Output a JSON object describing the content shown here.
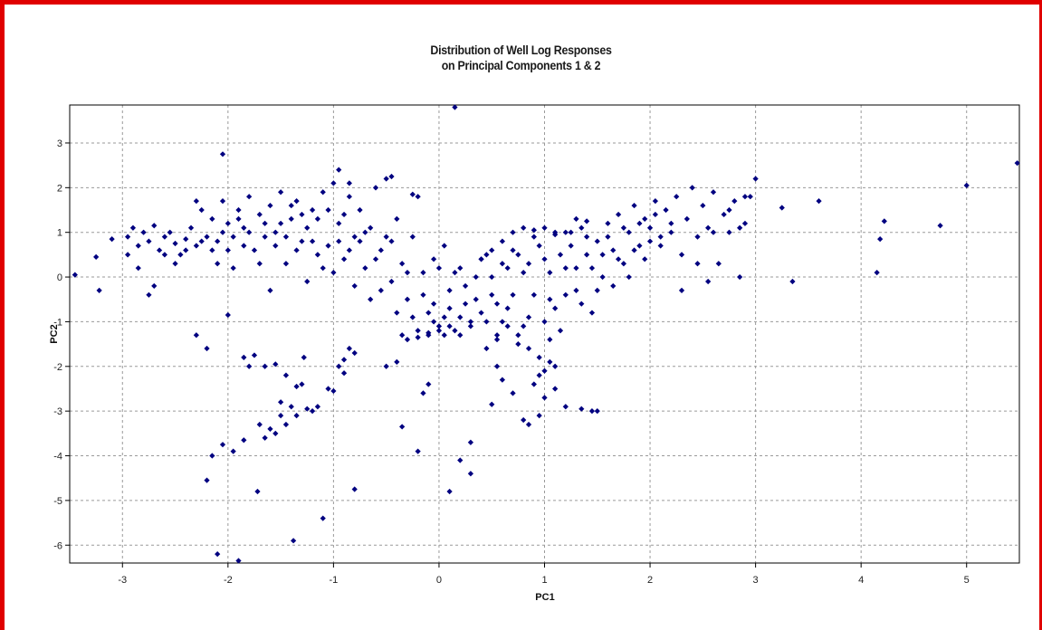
{
  "chart_data": {
    "type": "scatter",
    "title": "Distribution of Well Log Responses",
    "subtitle": "on Principal Components 1 & 2",
    "xlabel": "PC1",
    "ylabel": "PC2",
    "xlim": [
      -3.5,
      5.5
    ],
    "ylim": [
      -6.4,
      3.85
    ],
    "xticks": [
      -3,
      -2,
      -1,
      0,
      1,
      2,
      3,
      4,
      5
    ],
    "yticks": [
      3,
      2,
      1,
      0,
      -1,
      -2,
      -3,
      -4,
      -5,
      -6
    ],
    "grid": true,
    "marker_color": "#000080",
    "points": [
      [
        -3.45,
        0.05
      ],
      [
        -3.25,
        0.45
      ],
      [
        -3.22,
        -0.3
      ],
      [
        -3.1,
        0.85
      ],
      [
        -2.95,
        0.9
      ],
      [
        -2.9,
        1.1
      ],
      [
        -2.85,
        0.7
      ],
      [
        -2.8,
        1.0
      ],
      [
        -2.75,
        0.8
      ],
      [
        -2.7,
        1.15
      ],
      [
        -2.65,
        0.6
      ],
      [
        -2.6,
        0.9
      ],
      [
        -2.55,
        1.0
      ],
      [
        -2.5,
        0.75
      ],
      [
        -2.45,
        0.5
      ],
      [
        -2.4,
        0.85
      ],
      [
        -2.35,
        1.1
      ],
      [
        -2.3,
        0.7
      ],
      [
        -2.25,
        1.5
      ],
      [
        -2.2,
        0.9
      ],
      [
        -2.15,
        1.3
      ],
      [
        -2.1,
        0.8
      ],
      [
        -2.05,
        1.7
      ],
      [
        -2.0,
        1.2
      ],
      [
        -1.95,
        0.9
      ],
      [
        -1.9,
        1.5
      ],
      [
        -1.85,
        1.1
      ],
      [
        -1.8,
        1.8
      ],
      [
        -1.75,
        0.6
      ],
      [
        -1.7,
        1.4
      ],
      [
        -1.65,
        0.9
      ],
      [
        -1.6,
        1.6
      ],
      [
        -1.55,
        1.0
      ],
      [
        -1.5,
        1.9
      ],
      [
        -1.45,
        0.3
      ],
      [
        -1.4,
        1.3
      ],
      [
        -1.35,
        1.7
      ],
      [
        -1.3,
        0.8
      ],
      [
        -1.25,
        1.1
      ],
      [
        -1.2,
        1.5
      ],
      [
        -1.15,
        0.5
      ],
      [
        -1.1,
        1.9
      ],
      [
        -1.05,
        0.7
      ],
      [
        -1.0,
        2.1
      ],
      [
        -0.95,
        1.2
      ],
      [
        -0.9,
        0.4
      ],
      [
        -0.85,
        1.8
      ],
      [
        -0.8,
        0.9
      ],
      [
        -0.75,
        1.5
      ],
      [
        -0.7,
        0.2
      ],
      [
        -0.65,
        1.1
      ],
      [
        -0.6,
        2.0
      ],
      [
        -0.55,
        0.6
      ],
      [
        -0.5,
        2.2
      ],
      [
        -0.45,
        0.8
      ],
      [
        -0.4,
        1.3
      ],
      [
        -0.35,
        0.3
      ],
      [
        -0.3,
        -0.5
      ],
      [
        -0.25,
        0.9
      ],
      [
        -0.2,
        1.8
      ],
      [
        -0.15,
        0.1
      ],
      [
        -0.1,
        -0.8
      ],
      [
        -0.05,
        0.4
      ],
      [
        0.0,
        -1.1
      ],
      [
        0.05,
        0.7
      ],
      [
        0.1,
        -0.3
      ],
      [
        0.15,
        -1.2
      ],
      [
        0.2,
        0.2
      ],
      [
        0.25,
        -0.6
      ],
      [
        0.3,
        -1.0
      ],
      [
        0.35,
        0.0
      ],
      [
        0.4,
        -0.8
      ],
      [
        0.45,
        0.5
      ],
      [
        0.5,
        -0.4
      ],
      [
        0.55,
        -1.3
      ],
      [
        0.6,
        0.3
      ],
      [
        0.65,
        -0.7
      ],
      [
        0.7,
        0.6
      ],
      [
        0.75,
        -1.5
      ],
      [
        0.8,
        0.1
      ],
      [
        0.85,
        -0.9
      ],
      [
        0.9,
        0.9
      ],
      [
        0.95,
        -1.8
      ],
      [
        1.0,
        0.4
      ],
      [
        1.05,
        -0.5
      ],
      [
        1.1,
        1.0
      ],
      [
        1.15,
        -1.2
      ],
      [
        1.2,
        0.2
      ],
      [
        1.25,
        0.7
      ],
      [
        1.3,
        -0.3
      ],
      [
        1.35,
        1.1
      ],
      [
        1.4,
        0.5
      ],
      [
        1.45,
        -0.8
      ],
      [
        1.5,
        0.8
      ],
      [
        1.55,
        0.0
      ],
      [
        1.6,
        1.2
      ],
      [
        1.65,
        0.6
      ],
      [
        1.7,
        1.4
      ],
      [
        1.75,
        0.3
      ],
      [
        1.8,
        1.0
      ],
      [
        1.85,
        1.6
      ],
      [
        1.9,
        0.7
      ],
      [
        1.95,
        1.3
      ],
      [
        2.0,
        1.1
      ],
      [
        2.05,
        1.7
      ],
      [
        2.1,
        0.9
      ],
      [
        2.15,
        1.5
      ],
      [
        2.2,
        1.2
      ],
      [
        2.25,
        1.8
      ],
      [
        2.3,
        0.5
      ],
      [
        2.35,
        1.3
      ],
      [
        2.4,
        2.0
      ],
      [
        2.45,
        0.9
      ],
      [
        2.5,
        1.6
      ],
      [
        2.55,
        1.1
      ],
      [
        2.6,
        1.9
      ],
      [
        2.65,
        0.3
      ],
      [
        2.7,
        1.4
      ],
      [
        2.75,
        1.0
      ],
      [
        2.8,
        1.7
      ],
      [
        2.85,
        0.0
      ],
      [
        2.9,
        1.2
      ],
      [
        2.95,
        1.8
      ],
      [
        3.0,
        2.2
      ],
      [
        3.25,
        1.55
      ],
      [
        3.35,
        -0.1
      ],
      [
        3.6,
        1.7
      ],
      [
        4.15,
        0.1
      ],
      [
        4.18,
        0.85
      ],
      [
        4.22,
        1.25
      ],
      [
        4.75,
        1.15
      ],
      [
        5.0,
        2.05
      ],
      [
        5.48,
        2.55
      ],
      [
        -2.05,
        2.75
      ],
      [
        -0.95,
        2.4
      ],
      [
        -0.85,
        2.1
      ],
      [
        -0.45,
        2.25
      ],
      [
        -0.25,
        1.85
      ],
      [
        0.15,
        3.8
      ],
      [
        -2.2,
        -1.6
      ],
      [
        -2.3,
        -1.3
      ],
      [
        -2.15,
        -4.0
      ],
      [
        -2.2,
        -4.55
      ],
      [
        -2.1,
        -6.2
      ],
      [
        -2.05,
        -3.75
      ],
      [
        -2.0,
        -0.85
      ],
      [
        -1.95,
        -3.9
      ],
      [
        -1.9,
        -6.35
      ],
      [
        -1.85,
        -3.65
      ],
      [
        -1.85,
        -1.8
      ],
      [
        -1.8,
        -2.0
      ],
      [
        -1.75,
        -1.75
      ],
      [
        -1.72,
        -4.8
      ],
      [
        -1.7,
        -3.3
      ],
      [
        -1.65,
        -2.0
      ],
      [
        -1.65,
        -3.6
      ],
      [
        -1.6,
        -3.4
      ],
      [
        -1.55,
        -1.95
      ],
      [
        -1.55,
        -3.5
      ],
      [
        -1.5,
        -3.1
      ],
      [
        -1.5,
        -2.8
      ],
      [
        -1.45,
        -3.3
      ],
      [
        -1.45,
        -2.2
      ],
      [
        -1.4,
        -2.9
      ],
      [
        -1.38,
        -5.9
      ],
      [
        -1.35,
        -3.1
      ],
      [
        -1.35,
        -2.45
      ],
      [
        -1.3,
        -2.4
      ],
      [
        -1.28,
        -1.8
      ],
      [
        -1.25,
        -2.95
      ],
      [
        -1.2,
        -3.0
      ],
      [
        -1.15,
        -2.9
      ],
      [
        -1.05,
        -2.5
      ],
      [
        -1.0,
        -2.55
      ],
      [
        -0.95,
        -2.0
      ],
      [
        -0.9,
        -1.85
      ],
      [
        -0.9,
        -2.15
      ],
      [
        -0.85,
        -1.6
      ],
      [
        -0.8,
        -1.7
      ],
      [
        -1.1,
        -5.4
      ],
      [
        -0.8,
        -4.75
      ],
      [
        -0.35,
        -3.35
      ],
      [
        -0.2,
        -3.9
      ],
      [
        -0.15,
        -2.6
      ],
      [
        -0.1,
        -2.4
      ],
      [
        0.1,
        -4.8
      ],
      [
        0.2,
        -4.1
      ],
      [
        0.3,
        -4.4
      ],
      [
        0.3,
        -3.7
      ],
      [
        0.8,
        -3.2
      ],
      [
        0.85,
        -3.3
      ],
      [
        0.95,
        -3.1
      ],
      [
        1.0,
        -2.7
      ],
      [
        1.1,
        -2.5
      ],
      [
        1.2,
        -2.9
      ],
      [
        1.35,
        -2.95
      ],
      [
        1.45,
        -3.0
      ],
      [
        1.5,
        -3.0
      ],
      [
        0.5,
        -2.85
      ],
      [
        0.6,
        -2.3
      ],
      [
        0.7,
        -2.6
      ],
      [
        0.55,
        -2.0
      ],
      [
        -0.5,
        -2.0
      ],
      [
        -0.4,
        -1.9
      ],
      [
        -2.95,
        0.5
      ],
      [
        -2.85,
        0.2
      ],
      [
        -2.75,
        -0.4
      ],
      [
        -2.7,
        -0.2
      ],
      [
        -2.6,
        0.5
      ],
      [
        -2.5,
        0.3
      ],
      [
        -2.4,
        0.6
      ],
      [
        -2.3,
        1.7
      ],
      [
        -2.25,
        0.8
      ],
      [
        -2.15,
        0.6
      ],
      [
        -2.1,
        0.3
      ],
      [
        -2.05,
        1.0
      ],
      [
        -2.0,
        0.6
      ],
      [
        -1.95,
        0.2
      ],
      [
        -1.9,
        1.3
      ],
      [
        -1.85,
        0.7
      ],
      [
        -1.8,
        1.0
      ],
      [
        -1.7,
        0.3
      ],
      [
        -1.65,
        1.2
      ],
      [
        -1.6,
        -0.3
      ],
      [
        -1.55,
        0.7
      ],
      [
        -1.5,
        1.2
      ],
      [
        -1.45,
        0.9
      ],
      [
        -1.4,
        1.6
      ],
      [
        -1.35,
        0.6
      ],
      [
        -1.3,
        1.4
      ],
      [
        -1.25,
        -0.1
      ],
      [
        -1.2,
        0.8
      ],
      [
        -1.15,
        1.3
      ],
      [
        -1.1,
        0.2
      ],
      [
        -1.05,
        1.5
      ],
      [
        -1.0,
        0.1
      ],
      [
        -0.95,
        0.8
      ],
      [
        -0.9,
        1.4
      ],
      [
        -0.85,
        0.6
      ],
      [
        -0.8,
        -0.2
      ],
      [
        -0.75,
        0.8
      ],
      [
        -0.7,
        1.0
      ],
      [
        -0.65,
        -0.5
      ],
      [
        -0.6,
        0.4
      ],
      [
        -0.55,
        -0.3
      ],
      [
        -0.5,
        0.9
      ],
      [
        -0.45,
        -0.1
      ],
      [
        -0.4,
        -0.8
      ],
      [
        -0.35,
        -1.3
      ],
      [
        -0.3,
        0.1
      ],
      [
        -0.25,
        -0.9
      ],
      [
        -0.2,
        -1.2
      ],
      [
        -0.15,
        -0.4
      ],
      [
        -0.1,
        -1.3
      ],
      [
        -0.05,
        -0.6
      ],
      [
        0.0,
        0.2
      ],
      [
        0.05,
        -1.3
      ],
      [
        0.1,
        -0.7
      ],
      [
        0.15,
        0.1
      ],
      [
        0.2,
        -0.9
      ],
      [
        0.25,
        -0.2
      ],
      [
        0.3,
        -1.1
      ],
      [
        0.35,
        -0.5
      ],
      [
        0.4,
        0.4
      ],
      [
        0.45,
        -1.0
      ],
      [
        0.5,
        0.0
      ],
      [
        0.55,
        -0.6
      ],
      [
        0.6,
        -1.0
      ],
      [
        0.65,
        0.2
      ],
      [
        0.7,
        -0.4
      ],
      [
        0.75,
        0.5
      ],
      [
        0.8,
        -1.1
      ],
      [
        0.85,
        0.3
      ],
      [
        0.9,
        -0.4
      ],
      [
        0.95,
        0.7
      ],
      [
        1.0,
        -1.0
      ],
      [
        1.05,
        0.1
      ],
      [
        1.1,
        -0.7
      ],
      [
        1.15,
        0.5
      ],
      [
        1.2,
        -0.4
      ],
      [
        1.25,
        1.0
      ],
      [
        1.3,
        0.2
      ],
      [
        1.35,
        -0.6
      ],
      [
        1.4,
        0.9
      ],
      [
        1.45,
        0.2
      ],
      [
        1.5,
        -0.3
      ],
      [
        1.55,
        0.5
      ],
      [
        1.6,
        0.9
      ],
      [
        1.65,
        -0.2
      ],
      [
        1.7,
        0.4
      ],
      [
        1.75,
        1.1
      ],
      [
        1.8,
        0.0
      ],
      [
        1.85,
        0.6
      ],
      [
        1.9,
        1.2
      ],
      [
        1.95,
        0.4
      ],
      [
        2.0,
        0.8
      ],
      [
        2.05,
        1.4
      ],
      [
        2.1,
        0.7
      ],
      [
        2.2,
        1.0
      ],
      [
        2.3,
        -0.3
      ],
      [
        2.45,
        0.3
      ],
      [
        2.55,
        -0.1
      ],
      [
        2.6,
        1.0
      ],
      [
        2.75,
        1.5
      ],
      [
        2.85,
        1.1
      ],
      [
        2.9,
        1.8
      ],
      [
        0.7,
        1.0
      ],
      [
        0.8,
        1.1
      ],
      [
        0.9,
        1.05
      ],
      [
        1.0,
        1.1
      ],
      [
        1.1,
        0.95
      ],
      [
        1.2,
        1.0
      ],
      [
        0.6,
        0.8
      ],
      [
        0.5,
        0.6
      ],
      [
        0.4,
        0.4
      ],
      [
        1.3,
        1.3
      ],
      [
        1.4,
        1.25
      ],
      [
        0.95,
        -2.2
      ],
      [
        1.0,
        -2.1
      ],
      [
        1.05,
        -1.9
      ],
      [
        0.9,
        -2.4
      ],
      [
        0.85,
        -1.6
      ],
      [
        1.05,
        -1.4
      ],
      [
        1.1,
        -2.0
      ],
      [
        0.75,
        -1.3
      ],
      [
        0.65,
        -1.1
      ],
      [
        0.55,
        -1.4
      ],
      [
        0.45,
        -1.6
      ],
      [
        -0.3,
        -1.4
      ],
      [
        -0.2,
        -1.35
      ],
      [
        -0.1,
        -1.25
      ],
      [
        0.0,
        -1.2
      ],
      [
        0.1,
        -1.1
      ],
      [
        0.05,
        -0.9
      ],
      [
        -0.05,
        -1.0
      ],
      [
        0.2,
        -1.3
      ]
    ]
  }
}
